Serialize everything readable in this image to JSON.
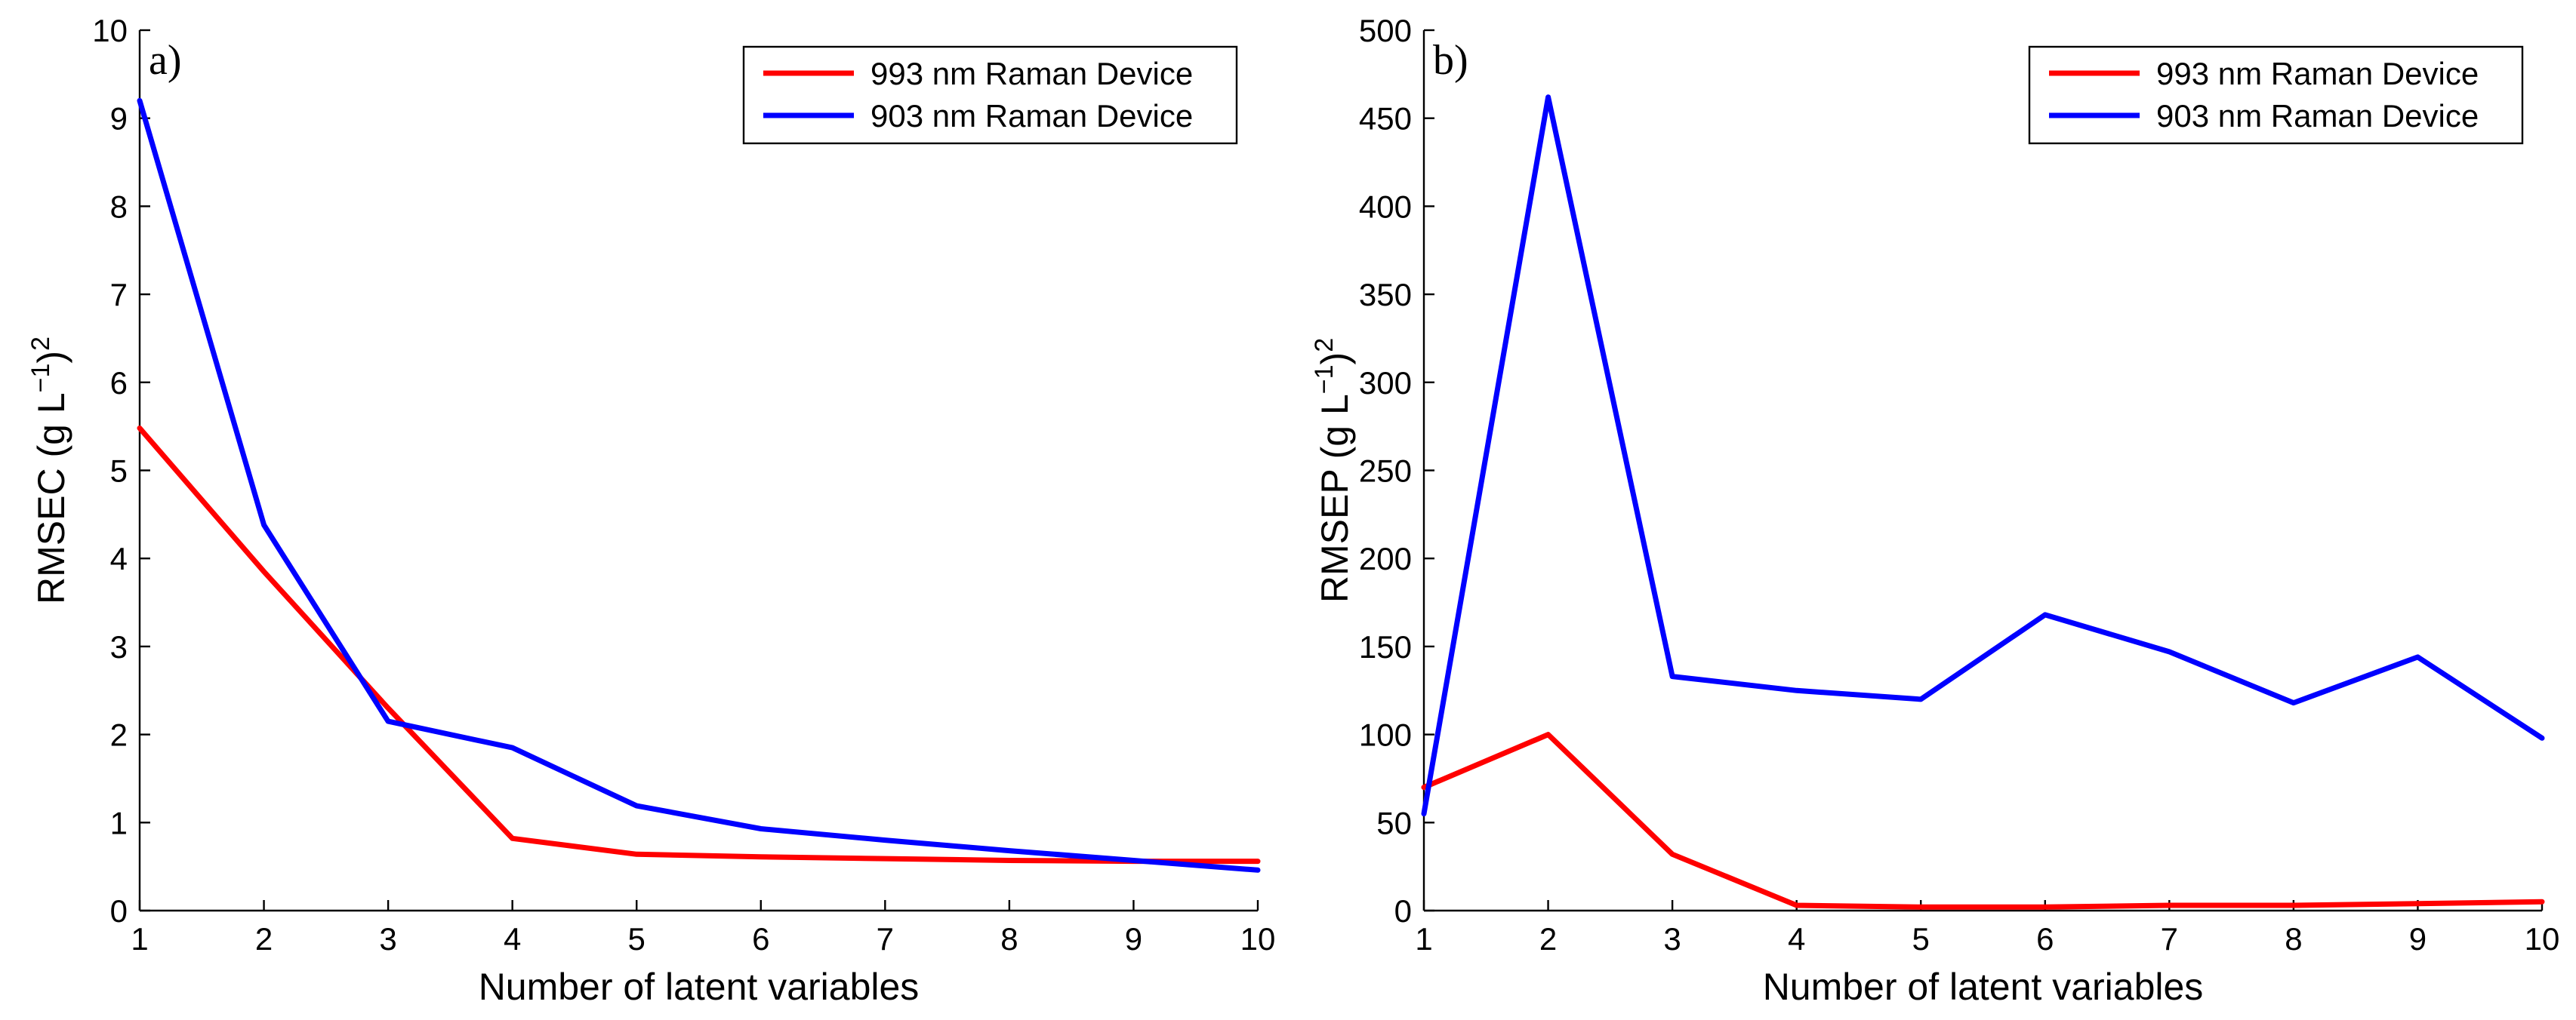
{
  "chart_data": [
    {
      "type": "line",
      "panel_label": "a)",
      "xlabel": "Number of latent variables",
      "ylabel": {
        "base": "RMSEC (g L",
        "sup1": "−1",
        "close": ")",
        "sup2": "2"
      },
      "xlim": [
        1,
        10
      ],
      "ylim": [
        0,
        10
      ],
      "xticks": [
        "1",
        "2",
        "3",
        "4",
        "5",
        "6",
        "7",
        "8",
        "9",
        "10"
      ],
      "yticks": [
        "0",
        "1",
        "2",
        "3",
        "4",
        "5",
        "6",
        "7",
        "8",
        "9",
        "10"
      ],
      "legend_position": "top-right",
      "x": [
        1,
        2,
        3,
        4,
        5,
        6,
        7,
        8,
        9,
        10
      ],
      "series": [
        {
          "name": "993 nm Raman Device",
          "color": "#ff0000",
          "values": [
            5.48,
            3.85,
            2.3,
            0.82,
            0.64,
            0.61,
            0.59,
            0.57,
            0.56,
            0.56
          ]
        },
        {
          "name": "903 nm Raman Device",
          "color": "#0000ff",
          "values": [
            9.2,
            4.38,
            2.15,
            1.85,
            1.19,
            0.93,
            0.8,
            0.68,
            0.57,
            0.46
          ]
        }
      ]
    },
    {
      "type": "line",
      "panel_label": "b)",
      "xlabel": "Number of latent variables",
      "ylabel": {
        "base": "RMSEP (g L",
        "sup1": "−1",
        "close": ")",
        "sup2": "2"
      },
      "xlim": [
        1,
        10
      ],
      "ylim": [
        0,
        500
      ],
      "xticks": [
        "1",
        "2",
        "3",
        "4",
        "5",
        "6",
        "7",
        "8",
        "9",
        "10"
      ],
      "yticks": [
        "0",
        "50",
        "100",
        "150",
        "200",
        "250",
        "300",
        "350",
        "400",
        "450",
        "500"
      ],
      "legend_position": "top-right",
      "x": [
        1,
        2,
        3,
        4,
        5,
        6,
        7,
        8,
        9,
        10
      ],
      "series": [
        {
          "name": "993 nm Raman Device",
          "color": "#ff0000",
          "values": [
            70,
            100,
            32,
            3,
            2,
            2,
            3,
            3,
            4,
            5
          ]
        },
        {
          "name": "903 nm Raman Device",
          "color": "#0000ff",
          "values": [
            55,
            462,
            133,
            125,
            120,
            168,
            147,
            118,
            144,
            98
          ]
        }
      ]
    }
  ]
}
